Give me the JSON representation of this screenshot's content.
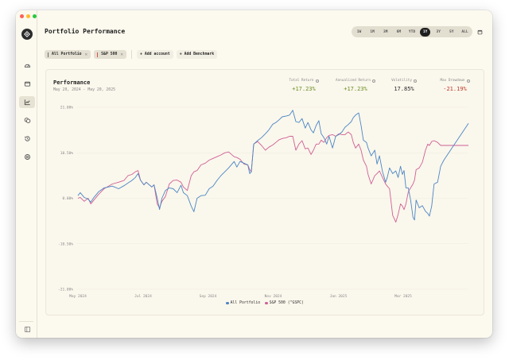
{
  "window": {
    "traffic_lights": {
      "close": "#ff5f57",
      "minimize": "#febc2e",
      "maximize": "#28c840"
    }
  },
  "sidebar": {
    "logo_icon": "logo-icon",
    "items": [
      {
        "name": "dashboard",
        "icon": "gauge-icon",
        "active": false
      },
      {
        "name": "accounts",
        "icon": "wallet-icon",
        "active": false
      },
      {
        "name": "performance",
        "icon": "chart-line-icon",
        "active": true
      },
      {
        "name": "holdings",
        "icon": "coins-icon",
        "active": false
      },
      {
        "name": "history",
        "icon": "history-icon",
        "active": false
      },
      {
        "name": "settings",
        "icon": "settings-icon",
        "active": false
      }
    ],
    "bottom_icon": "sidebar-toggle-icon"
  },
  "header": {
    "title": "Portfolio Performance",
    "ranges": [
      "1W",
      "1M",
      "3M",
      "6M",
      "YTD",
      "1Y",
      "3Y",
      "5Y",
      "ALL"
    ],
    "active_range": "1Y",
    "calendar_icon": "calendar-icon"
  },
  "chips": [
    {
      "label": "All Portfolio",
      "color": "#6b6b6b"
    },
    {
      "label": "S&P 500",
      "color": "#d9534f"
    }
  ],
  "actions": {
    "add_account": "Add account",
    "add_benchmark": "Add Benchmark"
  },
  "card": {
    "title": "Performance",
    "date_range": "May 20, 2024 - May 20, 2025",
    "stats": [
      {
        "label": "Total Return",
        "value": "+17.23%",
        "color": "#6b8e23"
      },
      {
        "label": "Annualized Return",
        "value": "+17.23%",
        "color": "#6b8e23"
      },
      {
        "label": "Volatility",
        "value": "17.85%",
        "color": "#2a2a2a"
      },
      {
        "label": "Max Drawdown",
        "value": "-21.19%",
        "color": "#c0392b"
      }
    ]
  },
  "colors": {
    "portfolio": "#4a86c5",
    "benchmark": "#cf5f95"
  },
  "chart_data": {
    "type": "line",
    "title": "Performance",
    "xlabel": "",
    "ylabel": "",
    "ylim": [
      -21.0,
      21.0
    ],
    "y_ticks": [
      "21.00%",
      "10.50%",
      "0.00%",
      "-10.50%",
      "-21.00%"
    ],
    "y_tick_values": [
      21.0,
      10.5,
      0.0,
      -10.5,
      -21.0
    ],
    "x_ticks": [
      "May 2024",
      "Jul 2024",
      "Sep 2024",
      "Nov 2024",
      "Jan 2025",
      "Mar 2025"
    ],
    "x_tick_positions": [
      0.0,
      0.167,
      0.333,
      0.5,
      0.667,
      0.833
    ],
    "grid": true,
    "legend_position": "bottom",
    "x": [
      0.0,
      0.006,
      0.016,
      0.026,
      0.033,
      0.041,
      0.053,
      0.067,
      0.088,
      0.104,
      0.118,
      0.128,
      0.138,
      0.147,
      0.154,
      0.16,
      0.169,
      0.175,
      0.189,
      0.195,
      0.203,
      0.209,
      0.215,
      0.224,
      0.234,
      0.244,
      0.254,
      0.264,
      0.27,
      0.28,
      0.29,
      0.297,
      0.305,
      0.315,
      0.326,
      0.336,
      0.346,
      0.356,
      0.366,
      0.376,
      0.386,
      0.4,
      0.407,
      0.415,
      0.425,
      0.435,
      0.44,
      0.444,
      0.45,
      0.46,
      0.47,
      0.48,
      0.489,
      0.499,
      0.507,
      0.515,
      0.523,
      0.534,
      0.542,
      0.55,
      0.558,
      0.566,
      0.574,
      0.582,
      0.589,
      0.597,
      0.603,
      0.61,
      0.617,
      0.623,
      0.63,
      0.637,
      0.643,
      0.652,
      0.66,
      0.668,
      0.676,
      0.684,
      0.692,
      0.7,
      0.705,
      0.711,
      0.719,
      0.725,
      0.731,
      0.739,
      0.743,
      0.751,
      0.76,
      0.766,
      0.772,
      0.78,
      0.788,
      0.792,
      0.798,
      0.806,
      0.814,
      0.82,
      0.826,
      0.831,
      0.835,
      0.84,
      0.846,
      0.852,
      0.858,
      0.862,
      0.866,
      0.874,
      0.882,
      0.89,
      0.896,
      0.9,
      0.906,
      0.912,
      0.921,
      0.929,
      0.937,
      1.0
    ],
    "series": [
      {
        "name": "All Portfolio",
        "color": "#4a86c5",
        "values": [
          0.6,
          1.3,
          0.2,
          -0.2,
          -0.9,
          0.2,
          1.5,
          2.4,
          2.8,
          2.2,
          2.9,
          3.5,
          4.1,
          4.8,
          5.7,
          4.2,
          3.1,
          3.7,
          2.6,
          3.1,
          0.0,
          -2.6,
          0.0,
          1.8,
          2.4,
          2.2,
          1.3,
          3.0,
          1.3,
          0.6,
          -1.8,
          -3.1,
          0.0,
          0.6,
          0.7,
          2.2,
          2.8,
          4.1,
          5.2,
          6.1,
          7.0,
          8.5,
          7.2,
          8.5,
          8.1,
          7.7,
          5.7,
          6.1,
          12.5,
          13.3,
          14.0,
          14.9,
          15.8,
          17.1,
          17.5,
          18.1,
          18.8,
          19.0,
          19.2,
          20.3,
          17.7,
          17.5,
          18.4,
          16.2,
          17.5,
          15.8,
          15.1,
          16.8,
          17.9,
          14.9,
          14.0,
          12.5,
          14.3,
          11.6,
          14.3,
          14.7,
          15.3,
          16.4,
          17.0,
          17.7,
          18.6,
          19.2,
          19.7,
          16.8,
          13.4,
          12.9,
          11.6,
          9.8,
          11.1,
          7.9,
          9.8,
          6.1,
          3.7,
          4.8,
          7.0,
          5.7,
          6.3,
          4.8,
          7.4,
          5.5,
          6.4,
          2.4,
          2.4,
          -0.4,
          -4.4,
          -5.0,
          -0.4,
          -2.2,
          -1.7,
          -3.0,
          -3.5,
          -4.1,
          -1.8,
          3.3,
          3.7,
          7.4,
          8.8,
          17.3
        ]
      },
      {
        "name": "S&P 500 (^GSPC)",
        "color": "#cf5f95",
        "values": [
          0.0,
          0.2,
          -0.7,
          0.0,
          -1.3,
          -0.4,
          0.9,
          2.2,
          3.3,
          3.7,
          4.1,
          5.2,
          5.5,
          6.1,
          6.4,
          4.2,
          3.1,
          3.7,
          2.6,
          3.1,
          -1.3,
          -2.2,
          -0.7,
          0.4,
          3.3,
          4.1,
          4.2,
          3.7,
          2.6,
          1.8,
          5.2,
          6.1,
          6.4,
          7.7,
          8.1,
          8.8,
          9.2,
          9.6,
          10.0,
          10.5,
          10.7,
          9.6,
          9.4,
          9.0,
          7.9,
          7.7,
          6.6,
          6.1,
          12.5,
          13.1,
          12.2,
          11.1,
          11.8,
          12.3,
          12.9,
          13.5,
          13.8,
          14.0,
          14.3,
          14.3,
          11.1,
          12.5,
          13.3,
          11.4,
          11.6,
          10.1,
          11.1,
          12.5,
          12.5,
          13.4,
          12.9,
          14.0,
          14.5,
          14.7,
          14.3,
          14.9,
          14.7,
          14.7,
          15.3,
          14.7,
          12.9,
          11.6,
          12.5,
          11.1,
          8.8,
          7.4,
          5.5,
          3.3,
          5.2,
          5.7,
          6.3,
          4.8,
          3.3,
          2.8,
          2.2,
          -3.9,
          -5.5,
          -3.7,
          -1.3,
          -1.8,
          -2.6,
          -1.3,
          1.5,
          2.4,
          3.3,
          4.2,
          6.6,
          7.0,
          8.3,
          11.1,
          12.5,
          12.2,
          13.1,
          13.3,
          12.9,
          12.2,
          12.2,
          12.2
        ]
      }
    ]
  },
  "legend": [
    {
      "label": "All Portfolio",
      "color": "#4a86c5"
    },
    {
      "label": "S&P 500 (^GSPC)",
      "color": "#cf5f95"
    }
  ]
}
